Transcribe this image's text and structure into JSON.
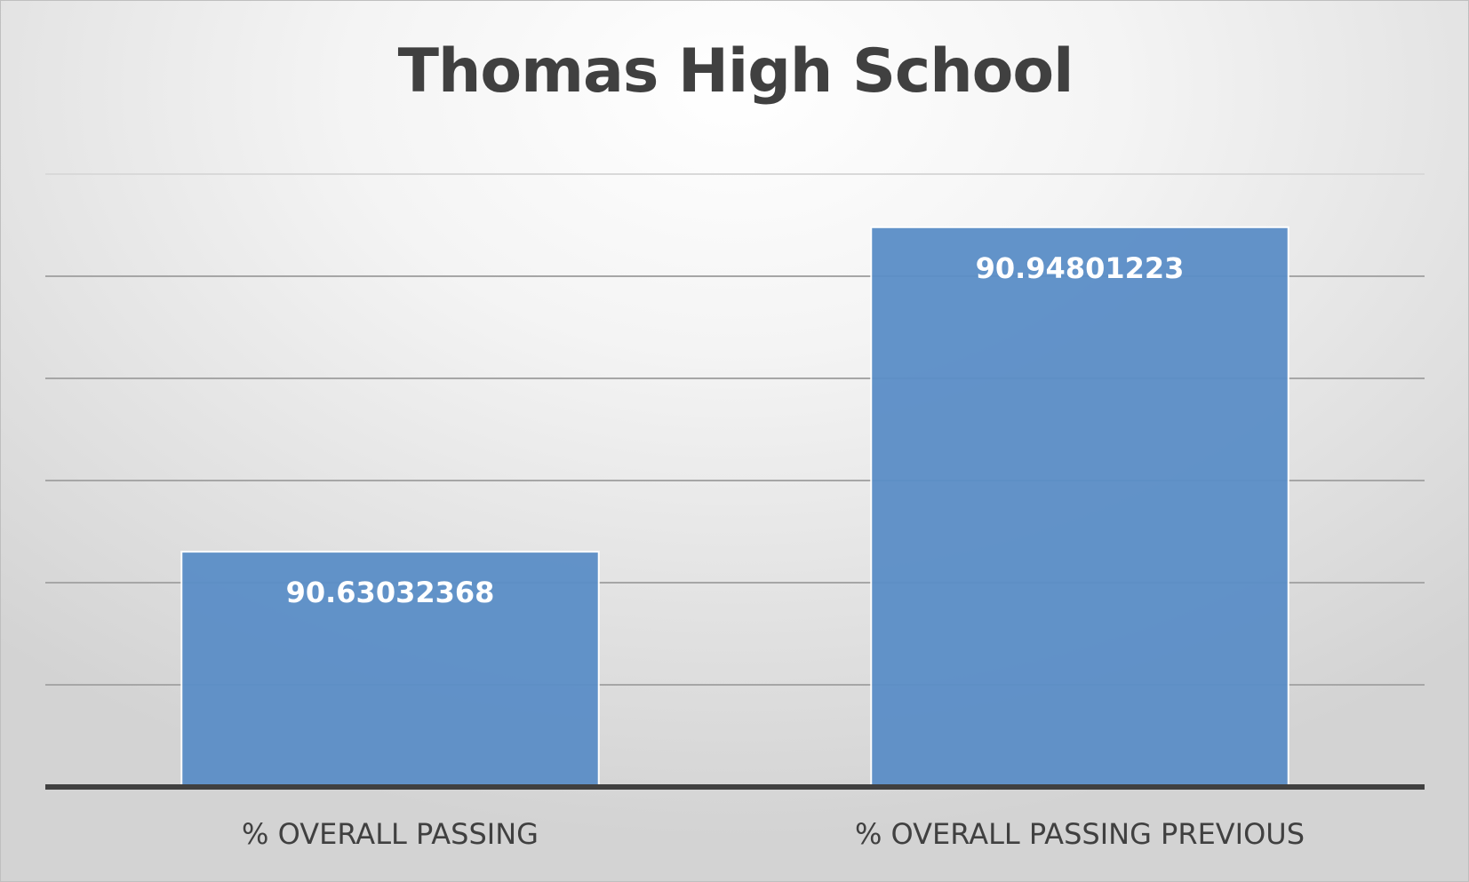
{
  "chart_data": {
    "type": "bar",
    "title": "Thomas High School",
    "categories": [
      "% OVERALL PASSING",
      "% OVERALL PASSING PREVIOUS"
    ],
    "values": [
      90.63032368,
      90.94801223
    ],
    "data_labels": [
      "90.63032368",
      "90.94801223"
    ],
    "xlabel": "",
    "ylabel": "",
    "ylim": [
      90.4,
      91.0
    ],
    "gridlines": [
      90.5,
      90.6,
      90.7,
      90.8,
      90.9,
      91.0
    ],
    "grid": true,
    "legend": "none",
    "colors": {
      "bar": "#5b8ec7",
      "title": "#404040",
      "axis": "#404040"
    }
  }
}
